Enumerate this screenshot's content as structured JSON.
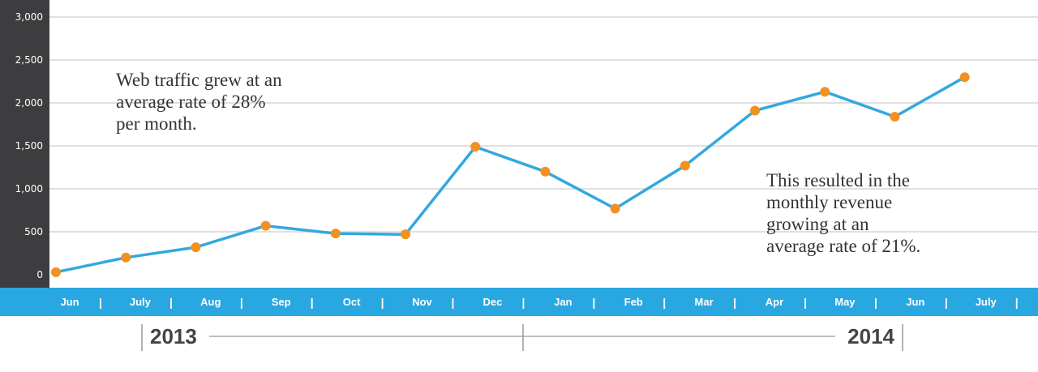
{
  "chart_data": {
    "type": "line",
    "categories": [
      "Jun",
      "July",
      "Aug",
      "Sep",
      "Oct",
      "Nov",
      "Dec",
      "Jan",
      "Feb",
      "Mar",
      "Apr",
      "May",
      "Jun",
      "July"
    ],
    "values": [
      30,
      200,
      320,
      570,
      480,
      470,
      1490,
      1200,
      770,
      1270,
      1910,
      2130,
      1840,
      2300
    ],
    "ylim": [
      0,
      3000
    ],
    "yticks": [
      "0",
      "500",
      "1,000",
      "1,500",
      "2,000",
      "2,500",
      "3,000"
    ],
    "grid": true,
    "years": [
      "2013",
      "2014"
    ],
    "annotations": [
      {
        "lines": [
          "Web traffic grew at an",
          "average rate of 28%",
          "per month."
        ]
      },
      {
        "lines": [
          "This resulted in the",
          "monthly revenue",
          "growing at an",
          "average rate of 21%."
        ]
      }
    ],
    "colors": {
      "line": "#33a8df",
      "marker": "#f29120",
      "axis_band": "#29a7e1",
      "y_axis_bg": "#3d3d3f",
      "grid": "#d5d5d5"
    }
  }
}
